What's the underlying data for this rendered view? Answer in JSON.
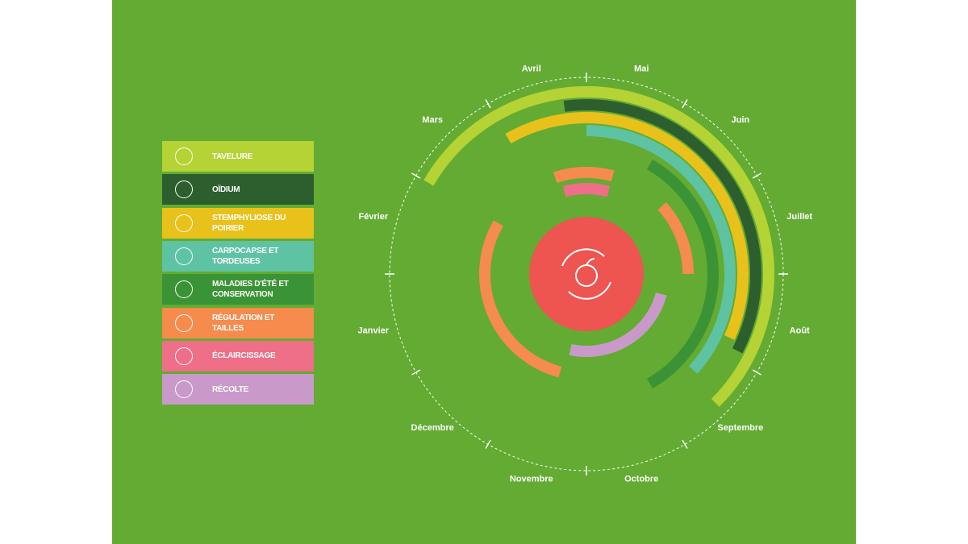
{
  "chart_data": {
    "type": "radial-calendar",
    "categories": [
      "Janvier",
      "Février",
      "Mars",
      "Avril",
      "Mai",
      "Juin",
      "Juillet",
      "Août",
      "Septembre",
      "Octobre",
      "Novembre",
      "Décembre"
    ],
    "xlim": [
      0,
      12
    ],
    "xticks": [
      0,
      1,
      2,
      3,
      4,
      5,
      6,
      7,
      8,
      9,
      10,
      11
    ],
    "center_color": "#ee5450",
    "series": [
      {
        "name": "TAVELURE",
        "color": "#b5d334",
        "values": [
          [
            2,
            8.5
          ]
        ]
      },
      {
        "name": "OÏDIUM",
        "color": "#2d5f2e",
        "values": [
          [
            3.75,
            7.9
          ]
        ]
      },
      {
        "name": "STEMPHYLIOSE DU POIRIER",
        "color": "#e8c21a",
        "values": [
          [
            3,
            7.8
          ]
        ]
      },
      {
        "name": "CARPOCAPSE ET TORDEUSES",
        "color": "#5ec3a2",
        "values": [
          [
            4,
            8.4
          ]
        ]
      },
      {
        "name": "MALADIES D'ÉTÉ ET CONSERVATION",
        "color": "#3a9435",
        "values": [
          [
            5,
            9
          ]
        ]
      },
      {
        "name": "RÉGULATION ET TAILLES",
        "color": "#f58b4c",
        "values": [
          [
            3.4,
            4.5
          ],
          [
            5.6,
            7
          ],
          [
            10.5,
            2
          ]
        ]
      },
      {
        "name": "ÉCLAIRCISSAGE",
        "color": "#ef6e88",
        "values": [
          [
            3.5,
            4.5
          ]
        ]
      },
      {
        "name": "RÉCOLTE",
        "color": "#c99ac9",
        "values": [
          [
            7.5,
            10.4
          ]
        ]
      }
    ]
  }
}
